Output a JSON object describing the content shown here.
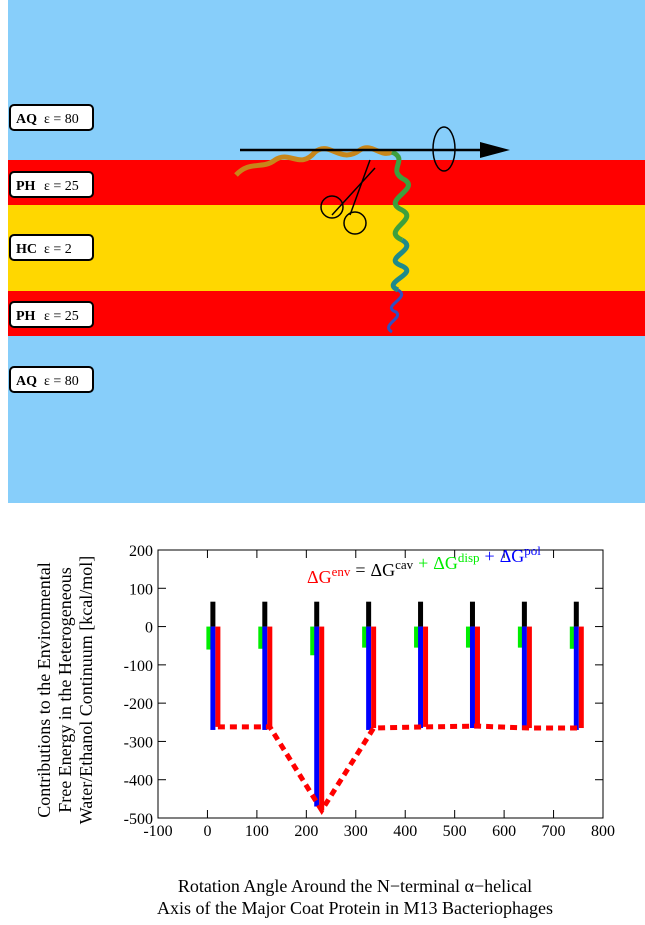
{
  "diagram": {
    "layers": [
      {
        "name": "AQ",
        "epsilon": "ε = 80"
      },
      {
        "name": "PH",
        "epsilon": "ε = 25"
      },
      {
        "name": "HC",
        "epsilon": "ε = 2"
      },
      {
        "name": "PH",
        "epsilon": "ε = 25"
      },
      {
        "name": "AQ",
        "epsilon": "ε = 80"
      }
    ]
  },
  "chart_data": {
    "type": "bar",
    "x": [
      10,
      115,
      220,
      325,
      430,
      535,
      640,
      745
    ],
    "series": [
      {
        "name": "ΔG",
        "superscript": "env",
        "color": "#ff0000",
        "values": [
          -262,
          -262,
          -480,
          -265,
          -262,
          -260,
          -265,
          -265
        ]
      },
      {
        "name": "ΔG",
        "superscript": "cav",
        "color": "#000000",
        "values": [
          65,
          65,
          65,
          65,
          65,
          65,
          65,
          65
        ]
      },
      {
        "name": "ΔG",
        "superscript": "disp",
        "color": "#00ee00",
        "values": [
          -60,
          -58,
          -75,
          -55,
          -55,
          -55,
          -55,
          -58
        ]
      },
      {
        "name": "ΔG",
        "superscript": "pol",
        "color": "#0000ff",
        "values": [
          -270,
          -270,
          -470,
          -270,
          -265,
          -265,
          -270,
          -270
        ]
      }
    ],
    "legend_operators": [
      "=",
      "+",
      "+"
    ],
    "xlim": [
      -100,
      800
    ],
    "xticks": [
      -100,
      0,
      100,
      200,
      300,
      400,
      500,
      600,
      700,
      800
    ],
    "ylim": [
      -500,
      200
    ],
    "yticks": [
      -500,
      -400,
      -300,
      -200,
      -100,
      0,
      100,
      200
    ],
    "xlabel": [
      "Rotation Angle Around the N−terminal α−helical",
      "Axis of the Major Coat Protein in M13 Bacteriophages"
    ],
    "ylabel": [
      "Contributions to the Environmental",
      "Free Energy in the Heterogeneous",
      "Water/Ethanol Continuum [kcal/mol]"
    ]
  }
}
